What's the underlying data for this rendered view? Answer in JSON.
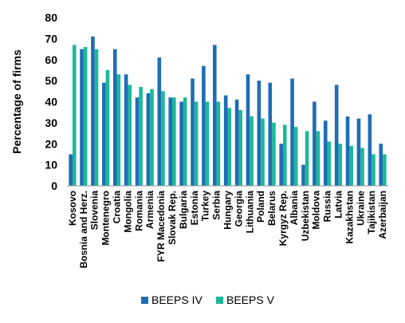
{
  "chart_data": {
    "type": "bar",
    "ylabel": "Percentage of firms",
    "ylim": [
      0,
      80
    ],
    "yticks": [
      0,
      10,
      20,
      30,
      40,
      50,
      60,
      70,
      80
    ],
    "grid": false,
    "legend_position": "bottom",
    "categories": [
      "Kosovo",
      "Bosnia and Herz.",
      "Slovenia",
      "Montenegro",
      "Croatia",
      "Mongolia",
      "Romania",
      "Armenia",
      "FYR Macedonia",
      "Slovak Rep.",
      "Bulgaria",
      "Estonia",
      "Turkey",
      "Serbia",
      "Hungary",
      "Georgia",
      "Lithuania",
      "Poland",
      "Belarus",
      "Kyrgyz Rep.",
      "Albania",
      "Uzbekistan",
      "Moldova",
      "Russia",
      "Latvia",
      "Kazakhstan",
      "Ukraine",
      "Tajikistan",
      "Azerbaijan"
    ],
    "series": [
      {
        "name": "BEEPS IV",
        "color": "#1f6db4",
        "values": [
          15,
          65,
          71,
          49,
          65,
          53,
          42,
          44,
          61,
          42,
          40,
          51,
          57,
          67,
          43,
          41,
          53,
          50,
          49,
          20,
          51,
          10,
          40,
          31,
          48,
          33,
          32,
          34,
          20
        ]
      },
      {
        "name": "BEEPS V",
        "color": "#1cb89a",
        "values": [
          67,
          66,
          65,
          55,
          53,
          48,
          47,
          46,
          45,
          42,
          42,
          40,
          40,
          40,
          37,
          36,
          33,
          32,
          30,
          29,
          28,
          26,
          26,
          21,
          20,
          19,
          18,
          15,
          15
        ]
      }
    ]
  }
}
